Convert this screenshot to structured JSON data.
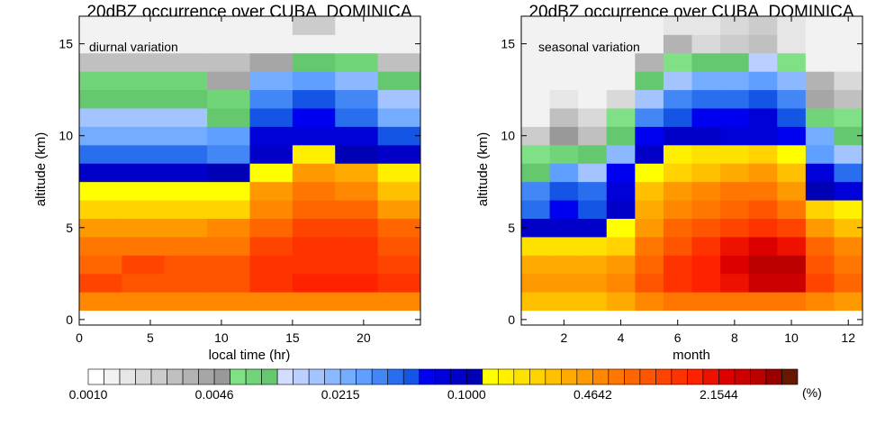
{
  "colorbar": {
    "colors": [
      "#ffffff",
      "#f2f2f2",
      "#e6e6e6",
      "#d9d9d9",
      "#cccccc",
      "#c0c0c0",
      "#b3b3b3",
      "#a6a6a6",
      "#999999",
      "#7fe085",
      "#72d479",
      "#66c86e",
      "#d4dcff",
      "#bcd0ff",
      "#a4c4ff",
      "#8cb8ff",
      "#74acff",
      "#5f9fff",
      "#4287f5",
      "#2a6ef0",
      "#1455e6",
      "#0000f0",
      "#0000d8",
      "#0000c8",
      "#0000b4",
      "#ffff00",
      "#fff000",
      "#ffe100",
      "#ffd200",
      "#ffc000",
      "#ffaa00",
      "#ff9900",
      "#ff8800",
      "#ff7700",
      "#ff6600",
      "#ff5500",
      "#ff4400",
      "#ff3300",
      "#ff2200",
      "#ee1100",
      "#dd0000",
      "#cc0000",
      "#bb0000",
      "#990000",
      "#661800"
    ],
    "tick_labels": [
      "0.0010",
      "0.0046",
      "0.0215",
      "0.1000",
      "0.4642",
      "2.1544"
    ],
    "unit": "(%)"
  },
  "chart_data": [
    {
      "type": "heatmap",
      "title": "20dBZ occurrence over CUBA_DOMINICA",
      "annotation": "diurnal variation",
      "xlabel": "local time (hr)",
      "ylabel": "altitude (km)",
      "xlim": [
        0,
        24
      ],
      "ylim": [
        -0.3,
        16.5
      ],
      "xticks": [
        0,
        5,
        10,
        15,
        20
      ],
      "yticks": [
        0,
        5,
        10,
        15
      ],
      "x_edges": [
        0,
        3,
        6,
        9,
        12,
        15,
        18,
        21,
        24
      ],
      "y_bins": [
        1,
        2,
        3,
        4,
        5,
        6,
        7,
        8,
        9,
        10,
        11,
        12,
        13,
        14,
        15,
        16
      ],
      "y_bin_height": 1,
      "color_index": [
        [
          32,
          32,
          32,
          32,
          32,
          32,
          32,
          32
        ],
        [
          36,
          35,
          35,
          35,
          37,
          38,
          38,
          37
        ],
        [
          34,
          36,
          35,
          35,
          37,
          37,
          37,
          36
        ],
        [
          33,
          33,
          33,
          33,
          36,
          37,
          37,
          35
        ],
        [
          31,
          31,
          31,
          32,
          34,
          36,
          36,
          34
        ],
        [
          28,
          28,
          28,
          28,
          32,
          34,
          34,
          31
        ],
        [
          25,
          25,
          25,
          25,
          31,
          33,
          32,
          29
        ],
        [
          23,
          23,
          23,
          24,
          25,
          31,
          30,
          26
        ],
        [
          19,
          19,
          19,
          18,
          23,
          26,
          24,
          23
        ],
        [
          16,
          16,
          16,
          17,
          22,
          22,
          22,
          20
        ],
        [
          14,
          14,
          14,
          11,
          20,
          21,
          19,
          16
        ],
        [
          11,
          11,
          11,
          10,
          18,
          20,
          18,
          14
        ],
        [
          10,
          10,
          10,
          7,
          16,
          17,
          15,
          11
        ],
        [
          5,
          5,
          5,
          5,
          7,
          11,
          10,
          5
        ],
        [
          1,
          1,
          1,
          1,
          1,
          1,
          1,
          1
        ],
        [
          1,
          1,
          1,
          1,
          1,
          4,
          1,
          1
        ]
      ]
    },
    {
      "type": "heatmap",
      "title": "20dBZ occurrence over CUBA_DOMINICA",
      "annotation": "seasonal variation",
      "xlabel": "month",
      "ylabel": "altitude (km)",
      "xlim": [
        0.5,
        12.5
      ],
      "ylim": [
        -0.3,
        16.5
      ],
      "xticks": [
        2,
        4,
        6,
        8,
        10,
        12
      ],
      "yticks": [
        0,
        5,
        10,
        15
      ],
      "x_edges": [
        0.5,
        1.5,
        2.5,
        3.5,
        4.5,
        5.5,
        6.5,
        7.5,
        8.5,
        9.5,
        10.5,
        11.5,
        12.5
      ],
      "y_bins": [
        1,
        2,
        3,
        4,
        5,
        6,
        7,
        8,
        9,
        10,
        11,
        12,
        13,
        14,
        15,
        16
      ],
      "y_bin_height": 1,
      "color_index": [
        [
          29,
          29,
          29,
          30,
          32,
          33,
          33,
          33,
          33,
          33,
          32,
          31
        ],
        [
          31,
          31,
          31,
          32,
          35,
          37,
          38,
          39,
          41,
          41,
          36,
          34
        ],
        [
          30,
          30,
          30,
          31,
          34,
          37,
          38,
          40,
          42,
          42,
          35,
          33
        ],
        [
          27,
          27,
          27,
          28,
          33,
          35,
          37,
          39,
          40,
          39,
          34,
          32
        ],
        [
          23,
          23,
          23,
          25,
          31,
          34,
          35,
          36,
          37,
          36,
          31,
          29
        ],
        [
          19,
          21,
          20,
          23,
          30,
          32,
          33,
          34,
          35,
          33,
          28,
          26
        ],
        [
          18,
          20,
          19,
          22,
          29,
          31,
          32,
          33,
          33,
          31,
          24,
          22
        ],
        [
          11,
          17,
          14,
          21,
          25,
          28,
          29,
          30,
          31,
          29,
          22,
          19
        ],
        [
          9,
          10,
          11,
          15,
          23,
          26,
          27,
          27,
          28,
          25,
          17,
          14
        ],
        [
          4,
          8,
          5,
          11,
          21,
          23,
          23,
          22,
          22,
          21,
          16,
          11
        ],
        [
          1,
          5,
          3,
          9,
          18,
          20,
          21,
          21,
          22,
          20,
          10,
          9
        ],
        [
          1,
          2,
          1,
          3,
          14,
          18,
          19,
          19,
          20,
          18,
          7,
          5
        ],
        [
          1,
          1,
          1,
          1,
          11,
          14,
          16,
          16,
          17,
          15,
          6,
          3
        ],
        [
          1,
          1,
          1,
          1,
          6,
          9,
          11,
          11,
          13,
          9,
          1,
          1
        ],
        [
          1,
          1,
          1,
          1,
          1,
          6,
          3,
          4,
          5,
          2,
          1,
          1
        ],
        [
          1,
          1,
          1,
          1,
          1,
          2,
          2,
          3,
          4,
          2,
          1,
          1
        ]
      ]
    }
  ]
}
